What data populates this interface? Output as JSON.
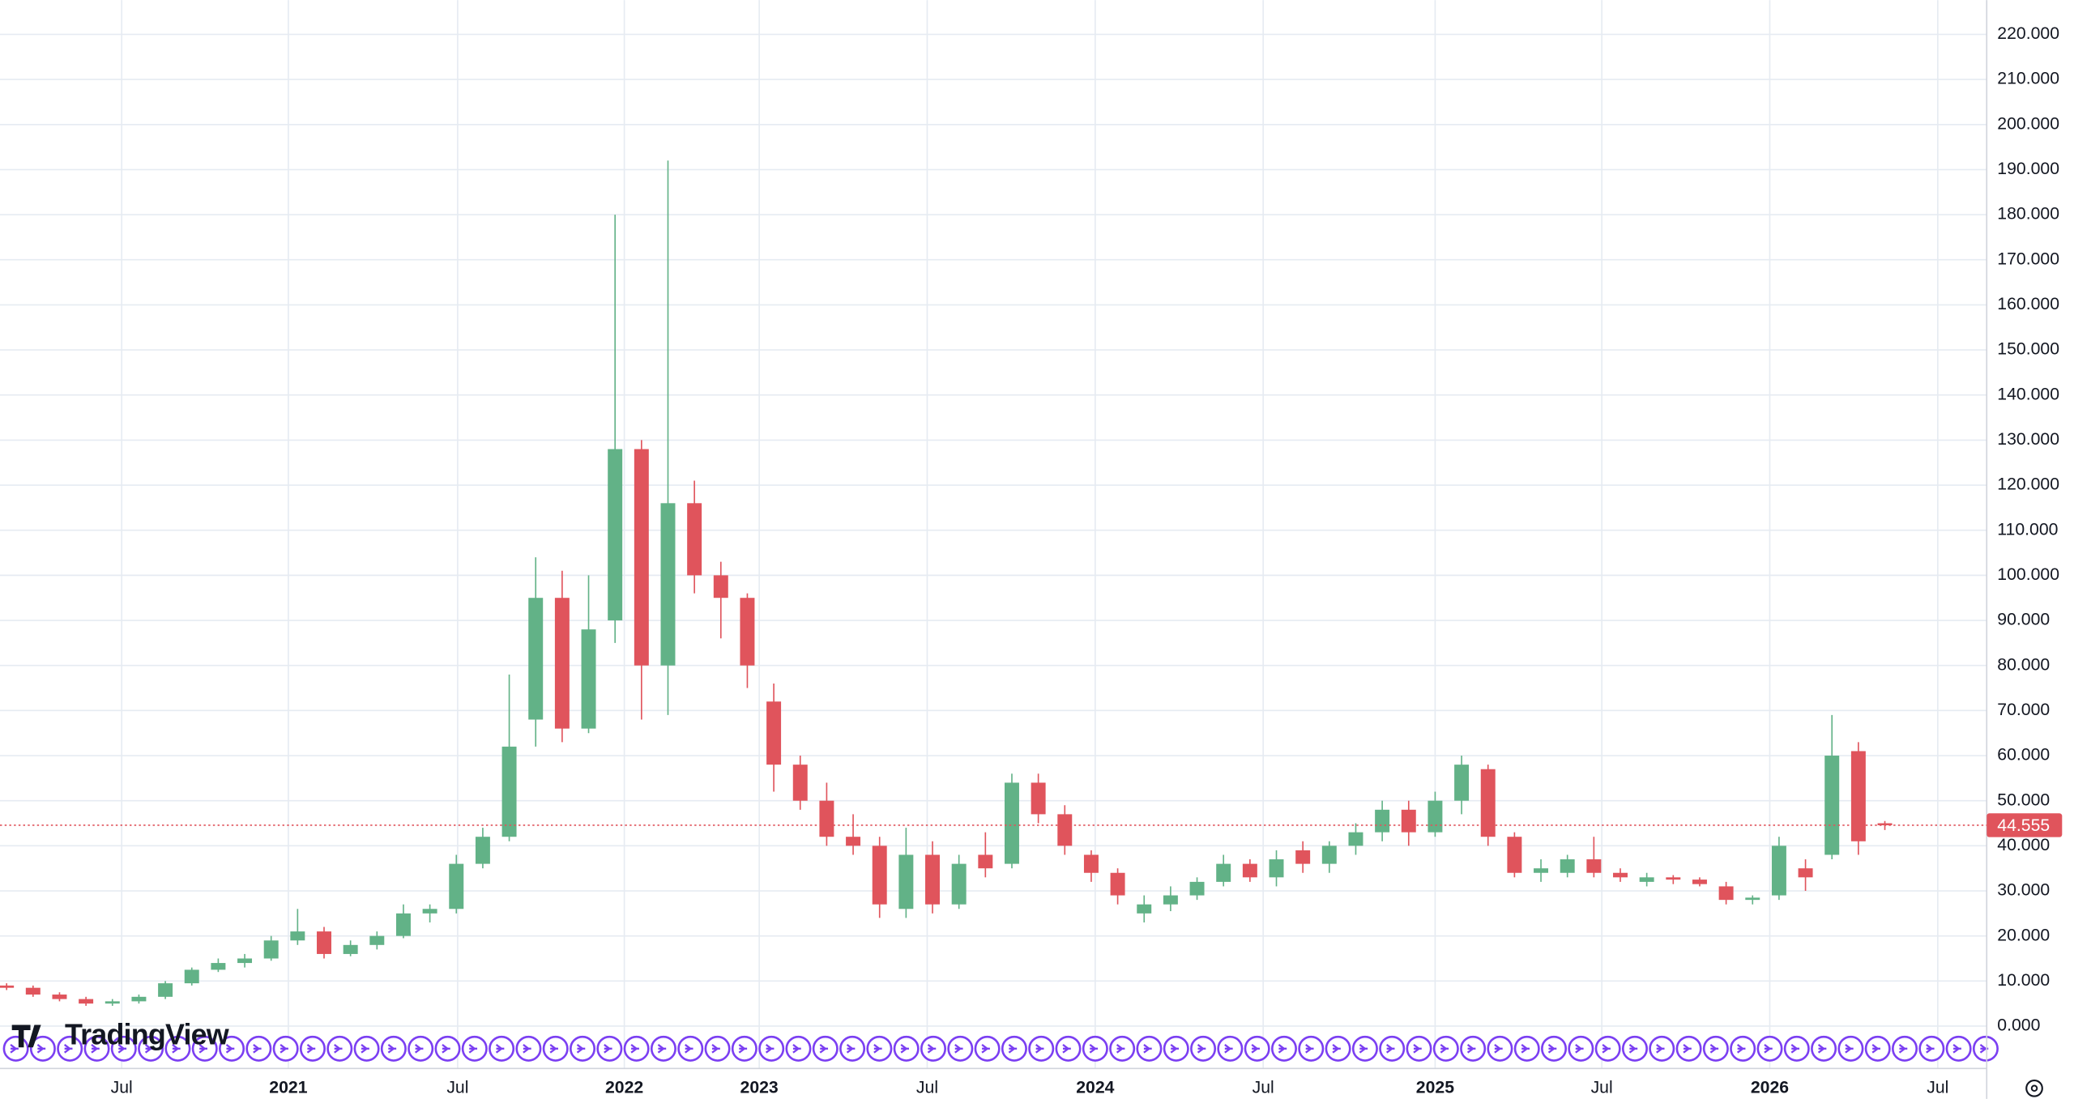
{
  "chart_data": {
    "type": "candlestick",
    "watermark": "TradingView",
    "up_color": "#62b287",
    "down_color": "#e0545c",
    "open": [
      9,
      8.5,
      7,
      6,
      5,
      5.5,
      6.5,
      9.5,
      12.5,
      14,
      15,
      19,
      21,
      16,
      18,
      20,
      25,
      26,
      36,
      42,
      68,
      95,
      66,
      90,
      128,
      80,
      116,
      100,
      95,
      72,
      58,
      50,
      42,
      40,
      26,
      38,
      27,
      38,
      36,
      54,
      47,
      38,
      34,
      25,
      27,
      29,
      32,
      36,
      33,
      39,
      36,
      40,
      43,
      48,
      43,
      50,
      57,
      42,
      34,
      34,
      37,
      34,
      32,
      33,
      32.5,
      31,
      28,
      29,
      35,
      38,
      61,
      45
    ],
    "high": [
      9.5,
      9,
      7.5,
      6.5,
      6,
      7,
      10,
      13,
      15,
      16,
      20,
      26,
      22,
      19,
      21,
      27,
      27,
      38,
      44,
      78,
      104,
      101,
      100,
      180,
      130,
      192,
      121,
      103,
      96,
      76,
      60,
      54,
      47,
      42,
      44,
      41,
      38,
      43,
      56,
      56,
      49,
      39,
      35,
      29,
      31,
      33,
      38,
      37,
      39,
      41,
      41,
      45,
      50,
      50,
      52,
      60,
      58,
      43,
      37,
      38,
      42,
      35,
      34,
      33.5,
      33,
      32,
      29,
      42,
      37,
      69,
      63,
      45.5
    ],
    "low": [
      8,
      6.5,
      5.5,
      4.5,
      4.5,
      5,
      6,
      9,
      12,
      13,
      14.5,
      18,
      15,
      15.5,
      17,
      19.5,
      23,
      25,
      35,
      41,
      62,
      63,
      65,
      85,
      68,
      69,
      96,
      86,
      75,
      52,
      48,
      40,
      38,
      24,
      24,
      25,
      26,
      33,
      35,
      45,
      38,
      32,
      27,
      23,
      25.5,
      28,
      31,
      32,
      31,
      34,
      34,
      38,
      41,
      40,
      42,
      47,
      40,
      33,
      32,
      33,
      33,
      32,
      31,
      31.5,
      31,
      27,
      27,
      28,
      30,
      37,
      38,
      43.5
    ],
    "close": [
      8.5,
      7,
      6,
      5,
      5.5,
      6.5,
      9.5,
      12.5,
      14,
      15,
      19,
      21,
      16,
      18,
      20,
      25,
      26,
      36,
      42,
      62,
      95,
      66,
      88,
      128,
      80,
      116,
      100,
      95,
      80,
      58,
      50,
      42,
      40,
      27,
      38,
      27,
      36,
      35,
      54,
      47,
      40,
      34,
      29,
      27,
      29,
      32,
      36,
      33,
      37,
      36,
      40,
      43,
      48,
      43,
      50,
      58,
      42,
      34,
      35,
      37,
      34,
      33,
      33,
      32.5,
      31.5,
      28,
      28.5,
      40,
      33,
      60,
      41,
      44.555
    ],
    "xlim": [
      -0.25,
      74.85
    ],
    "xticks": [
      {
        "value": 4.35,
        "label": "Jul"
      },
      {
        "value": 10.65,
        "label": "2021"
      },
      {
        "value": 17.05,
        "label": "Jul"
      },
      {
        "value": 23.35,
        "label": "2022"
      },
      {
        "value": 28.45,
        "label": "2023"
      },
      {
        "value": 34.8,
        "label": "Jul"
      },
      {
        "value": 41.15,
        "label": "2024"
      },
      {
        "value": 47.5,
        "label": "Jul"
      },
      {
        "value": 54,
        "label": "2025"
      },
      {
        "value": 60.3,
        "label": "Jul"
      },
      {
        "value": 66.65,
        "label": "2026"
      },
      {
        "value": 73,
        "label": "Jul"
      }
    ],
    "ylim": [
      -9.4,
      227.6
    ],
    "yticks": [
      {
        "value": 0,
        "label": "0.000"
      },
      {
        "value": 10,
        "label": "10.000"
      },
      {
        "value": 20,
        "label": "20.000"
      },
      {
        "value": 30,
        "label": "30.000"
      },
      {
        "value": 40,
        "label": "40.000"
      },
      {
        "value": 50,
        "label": "50.000"
      },
      {
        "value": 60,
        "label": "60.000"
      },
      {
        "value": 70,
        "label": "70.000"
      },
      {
        "value": 80,
        "label": "80.000"
      },
      {
        "value": 90,
        "label": "90.000"
      },
      {
        "value": 100,
        "label": "100.000"
      },
      {
        "value": 110,
        "label": "110.000"
      },
      {
        "value": 120,
        "label": "120.000"
      },
      {
        "value": 130,
        "label": "130.000"
      },
      {
        "value": 140,
        "label": "140.000"
      },
      {
        "value": 150,
        "label": "150.000"
      },
      {
        "value": 160,
        "label": "160.000"
      },
      {
        "value": 170,
        "label": "170.000"
      },
      {
        "value": 180,
        "label": "180.000"
      },
      {
        "value": 190,
        "label": "190.000"
      },
      {
        "value": 200,
        "label": "200.000"
      },
      {
        "value": 210,
        "label": "210.000"
      },
      {
        "value": 220,
        "label": "220.000"
      }
    ],
    "last_price": {
      "value": 44.555,
      "label": "44.555"
    },
    "grid": true
  }
}
